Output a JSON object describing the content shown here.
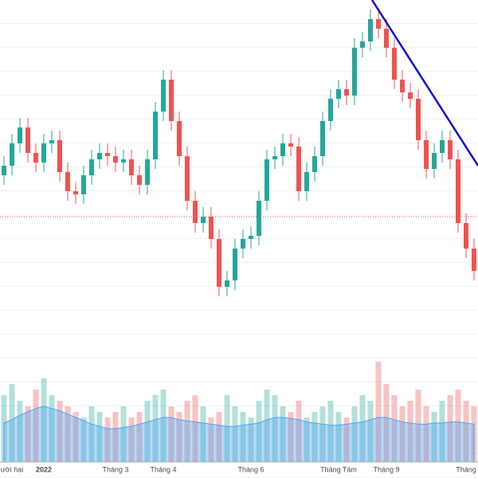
{
  "chart_data": {
    "type": "candlestick",
    "categories": [
      null,
      "ười hai",
      null,
      null,
      null,
      "2022",
      null,
      null,
      null,
      null,
      null,
      null,
      null,
      null,
      "Tháng 3",
      null,
      null,
      null,
      null,
      null,
      "Tháng 4",
      null,
      null,
      null,
      null,
      null,
      null,
      null,
      null,
      null,
      null,
      "Tháng 6",
      null,
      null,
      null,
      null,
      null,
      null,
      null,
      null,
      null,
      null,
      "Tháng Tám",
      null,
      null,
      null,
      null,
      null,
      "Tháng 9",
      null,
      null,
      null,
      null,
      null,
      null,
      null,
      null,
      null,
      "Tháng",
      null
    ],
    "open": [
      55,
      58,
      65,
      70,
      62,
      59,
      65,
      66,
      56,
      50,
      49,
      55,
      60,
      62,
      61,
      59,
      60,
      55,
      52,
      60,
      75,
      85,
      72,
      61,
      47,
      40,
      42,
      35,
      20,
      22,
      32,
      35,
      36,
      47,
      60,
      61,
      65,
      64,
      50,
      56,
      61,
      72,
      79,
      82,
      80,
      95,
      97,
      104,
      101,
      95,
      85,
      81,
      79,
      66,
      57,
      62,
      66,
      60,
      40,
      32
    ],
    "high": [
      61,
      68,
      73,
      73,
      65,
      68,
      69,
      69,
      59,
      53,
      58,
      63,
      65,
      65,
      64,
      63,
      63,
      58,
      63,
      78,
      88,
      88,
      75,
      64,
      50,
      45,
      45,
      38,
      25,
      35,
      38,
      39,
      50,
      63,
      64,
      68,
      68,
      67,
      59,
      64,
      75,
      82,
      85,
      85,
      98,
      100,
      107,
      107,
      104,
      98,
      88,
      84,
      82,
      69,
      65,
      69,
      69,
      63,
      43,
      35
    ],
    "low": [
      52,
      55,
      62,
      59,
      56,
      56,
      62,
      53,
      47,
      46,
      46,
      52,
      57,
      58,
      56,
      56,
      52,
      49,
      49,
      57,
      72,
      69,
      58,
      44,
      37,
      37,
      32,
      17,
      17,
      19,
      29,
      32,
      33,
      44,
      57,
      58,
      61,
      47,
      47,
      53,
      58,
      69,
      76,
      77,
      77,
      92,
      94,
      98,
      92,
      82,
      78,
      76,
      63,
      54,
      54,
      59,
      57,
      37,
      29,
      22
    ],
    "close": [
      58,
      65,
      70,
      62,
      59,
      65,
      66,
      56,
      50,
      49,
      55,
      60,
      62,
      61,
      59,
      60,
      55,
      52,
      60,
      75,
      85,
      72,
      61,
      47,
      40,
      42,
      35,
      20,
      22,
      32,
      35,
      36,
      47,
      60,
      61,
      65,
      64,
      50,
      56,
      61,
      72,
      79,
      82,
      80,
      95,
      97,
      104,
      101,
      95,
      85,
      81,
      79,
      66,
      57,
      62,
      66,
      60,
      40,
      32,
      25
    ],
    "up_color": "#26a69a",
    "down_color": "#ef5350",
    "ylim": [
      0,
      110
    ],
    "volume": {
      "values": [
        60,
        70,
        55,
        50,
        65,
        75,
        60,
        55,
        50,
        45,
        40,
        50,
        45,
        40,
        45,
        50,
        40,
        45,
        55,
        60,
        65,
        50,
        45,
        55,
        60,
        50,
        40,
        45,
        60,
        50,
        45,
        40,
        55,
        65,
        60,
        50,
        45,
        55,
        40,
        45,
        50,
        55,
        45,
        40,
        50,
        60,
        55,
        90,
        70,
        60,
        50,
        55,
        65,
        50,
        45,
        55,
        60,
        65,
        55,
        50
      ],
      "ma": [
        35,
        38,
        42,
        45,
        48,
        50,
        48,
        46,
        43,
        40,
        37,
        34,
        32,
        30,
        30,
        31,
        32,
        34,
        36,
        38,
        40,
        40,
        38,
        37,
        36,
        35,
        34,
        33,
        32,
        32,
        33,
        34,
        35,
        38,
        40,
        40,
        39,
        38,
        36,
        35,
        34,
        33,
        33,
        34,
        35,
        36,
        38,
        40,
        40,
        38,
        36,
        35,
        34,
        34,
        35,
        35,
        36,
        36,
        35,
        34
      ],
      "ylim": [
        0,
        100
      ],
      "ma_color": "#4aa3f0"
    },
    "reference_line": {
      "value": 42,
      "color": "#e05050"
    },
    "trend_line": {
      "x": [
        46.2,
        59.5
      ],
      "y": [
        110,
        58
      ],
      "color": "#1010d0"
    }
  }
}
